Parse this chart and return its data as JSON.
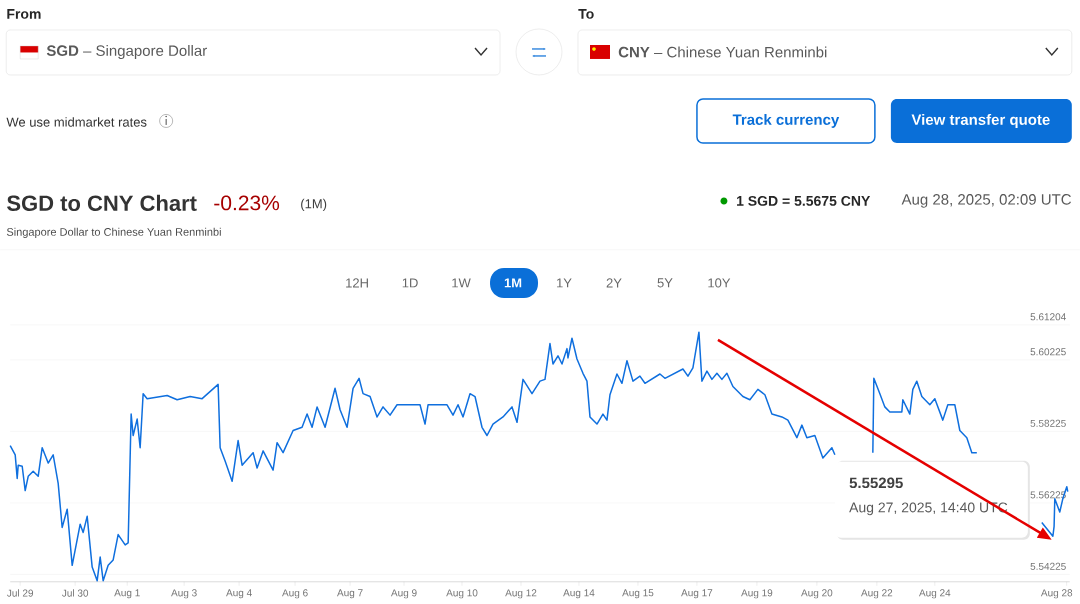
{
  "chart_data": {
    "type": "line",
    "title": "SGD to CNY Chart",
    "subtitle": "Singapore Dollar to Chinese Yuan Renminbi",
    "color": "#0f6fde",
    "grid": "y",
    "annotations": [
      "From",
      "To",
      "**SGD** – Singapore Dollar",
      "**CNY** – Chinese Yuan Renminbi",
      "We use midmarket rates",
      "Track currency",
      "View transfer quote",
      "-0.23%",
      "(1M)",
      "1 SGD = 5.5675 CNY",
      "Aug 28, 2025, 02:09 UTC",
      "12H",
      "1D",
      "1W",
      "1M",
      "1Y",
      "2Y",
      "5Y",
      "10Y",
      "5.55295",
      "Aug 27, 2025, 14:40 UTC"
    ],
    "x": [
      "2025-07-29T02:09",
      "2025-07-29T05:33",
      "2025-07-29T06:54",
      "2025-07-29T07:35",
      "2025-07-29T10:18",
      "2025-07-29T12:20",
      "2025-07-29T14:23",
      "2025-07-29T17:46",
      "2025-07-29T21:10",
      "2025-07-29T23:53",
      "2025-07-30T03:58",
      "2025-07-30T07:21",
      "2025-07-30T10:45",
      "2025-07-30T13:28",
      "2025-07-30T16:52",
      "2025-07-30T20:16",
      "2025-07-31T01:42",
      "2025-07-31T03:44",
      "2025-07-31T06:27",
      "2025-07-31T09:51",
      "2025-07-31T13:15",
      "2025-07-31T15:17",
      "2025-07-31T17:19",
      "2025-07-31T20:43",
      "2025-08-01T00:07",
      "2025-08-01T03:30",
      "2025-08-01T08:16",
      "2025-08-01T10:18",
      "2025-08-01T12:20",
      "2025-08-01T13:42",
      "2025-08-01T16:25",
      "2025-08-01T18:27",
      "2025-08-01T20:29",
      "2025-08-01T23:12",
      "2025-08-02T12:47",
      "2025-08-02T19:35",
      "2025-08-03T04:25",
      "2025-08-03T12:34",
      "2025-08-03T18:00",
      "2025-08-03T23:26",
      "2025-08-04T00:48",
      "2025-08-04T04:11",
      "2025-08-04T08:57",
      "2025-08-04T13:01",
      "2025-08-04T15:44",
      "2025-08-04T23:12",
      "2025-08-05T01:55",
      "2025-08-05T06:00",
      "2025-08-05T12:47",
      "2025-08-05T15:30",
      "2025-08-05T19:35",
      "2025-08-06T02:23",
      "2025-08-06T08:29",
      "2025-08-06T11:53",
      "2025-08-06T15:17",
      "2025-08-06T18:41",
      "2025-08-07T00:07",
      "2025-08-07T06:54",
      "2025-08-07T10:18",
      "2025-08-07T15:03",
      "2025-08-07T19:08",
      "2025-08-07T23:12",
      "2025-08-08T01:55",
      "2025-08-08T06:41",
      "2025-08-08T11:26",
      "2025-08-08T15:30",
      "2025-08-08T20:16",
      "2025-08-09T01:01",
      "2025-08-09T16:38",
      "2025-08-09T20:02",
      "2025-08-09T22:05",
      "2025-08-10T10:59",
      "2025-08-10T15:03",
      "2025-08-10T18:27",
      "2025-08-10T21:51",
      "2025-08-11T02:36",
      "2025-08-11T06:00",
      "2025-08-11T10:45",
      "2025-08-11T14:09",
      "2025-08-11T18:13",
      "2025-08-12T01:01",
      "2025-08-12T07:08",
      "2025-08-12T10:32",
      "2025-08-12T14:36",
      "2025-08-12T20:43",
      "2025-08-13T02:09",
      "2025-08-13T05:33",
      "2025-08-13T08:56",
      "2025-08-13T10:59",
      "2025-08-13T14:23",
      "2025-08-13T17:06",
      "2025-08-13T20:29",
      "2025-08-13T21:10",
      "2025-08-13T23:53",
      "2025-08-14T03:17",
      "2025-08-14T07:21",
      "2025-08-14T10:04",
      "2025-08-14T12:07",
      "2025-08-14T16:52",
      "2025-08-14T20:56",
      "2025-08-14T23:40",
      "2025-08-15T01:42",
      "2025-08-15T06:27",
      "2025-08-15T09:51",
      "2025-08-15T13:15",
      "2025-08-15T17:19",
      "2025-08-15T22:04",
      "2025-08-16T01:28",
      "2025-08-16T11:40",
      "2025-08-16T15:03",
      "2025-08-17T03:17",
      "2025-08-17T06:41",
      "2025-08-17T10:04",
      "2025-08-17T14:09",
      "2025-08-17T16:11",
      "2025-08-17T19:35",
      "2025-08-17T22:59",
      "2025-08-18T02:23",
      "2025-08-18T05:46",
      "2025-08-18T09:10",
      "2025-08-18T13:15",
      "2025-08-18T20:02",
      "2025-08-19T00:47",
      "2025-08-19T06:13",
      "2025-08-19T10:59",
      "2025-08-19T15:44",
      "2025-08-19T22:32",
      "2025-08-20T02:36",
      "2025-08-20T08:43",
      "2025-08-20T12:07",
      "2025-08-20T15:30",
      "2025-08-20T20:56",
      "2025-08-21T02:23",
      "2025-08-21T08:29",
      "2025-08-21T10:32",
      "2025-08-22T00:07",
      "2025-08-22T12:20",
      "2025-08-22T13:01",
      "2025-08-22T17:06",
      "2025-08-22T20:29",
      "2025-08-22T23:53",
      "2025-08-23T08:02",
      "2025-08-23T08:43",
      "2025-08-23T13:28",
      "2025-08-23T15:30",
      "2025-08-23T18:13",
      "2025-08-23T21:37",
      "2025-08-24T03:03",
      "2025-08-24T06:27",
      "2025-08-24T11:53",
      "2025-08-24T15:17",
      "2025-08-24T20:02",
      "2025-08-24T23:26",
      "2025-08-25T04:11",
      "2025-08-25T07:35",
      "2025-08-25T10:59",
      "2025-08-26T09:24",
      "2025-08-27T07:08",
      "2025-08-27T14:40",
      "2025-08-27T15:30",
      "2025-08-27T15:58",
      "2025-08-27T19:21",
      "2025-08-27T21:24",
      "2025-08-28T00:07",
      "2025-08-28T00:47"
    ],
    "values": [
      5.5783,
      5.5757,
      5.5691,
      5.5728,
      5.5725,
      5.5657,
      5.5697,
      5.5711,
      5.5697,
      5.5777,
      5.5734,
      5.5757,
      5.5677,
      5.5554,
      5.5605,
      5.5448,
      5.5563,
      5.554,
      5.5585,
      5.5443,
      5.5405,
      5.5471,
      5.5405,
      5.5448,
      5.5463,
      5.5534,
      5.5505,
      5.5511,
      5.5871,
      5.5811,
      5.5857,
      5.5777,
      5.5928,
      5.5914,
      5.5923,
      5.5911,
      5.592,
      5.5914,
      5.5934,
      5.5954,
      5.5777,
      5.574,
      5.5683,
      5.5797,
      5.5728,
      5.5763,
      5.572,
      5.5768,
      5.5714,
      5.5791,
      5.5763,
      5.5825,
      5.5834,
      5.5871,
      5.5834,
      5.5891,
      5.5834,
      5.5943,
      5.5883,
      5.5834,
      5.5943,
      5.5971,
      5.5928,
      5.592,
      5.5863,
      5.5891,
      5.5868,
      5.5897,
      5.5897,
      5.5843,
      5.5897,
      5.5897,
      5.5868,
      5.5897,
      5.5863,
      5.5928,
      5.592,
      5.5834,
      5.5811,
      5.5843,
      5.5863,
      5.5891,
      5.5848,
      5.5968,
      5.5928,
      5.5963,
      5.5968,
      5.6068,
      5.6011,
      5.6034,
      5.6011,
      5.6054,
      5.6028,
      5.6083,
      5.6025,
      5.5985,
      5.5963,
      5.5863,
      5.5843,
      5.5871,
      5.5854,
      5.5925,
      5.5983,
      5.5957,
      5.602,
      5.5963,
      5.5977,
      5.5957,
      5.5983,
      5.5971,
      5.5997,
      5.5977,
      5.6,
      5.61,
      5.5963,
      5.5991,
      5.5968,
      5.5985,
      5.5968,
      5.5985,
      5.5948,
      5.592,
      5.5911,
      5.594,
      5.5925,
      5.5871,
      5.5863,
      5.5854,
      5.5805,
      5.584,
      5.5805,
      5.5811,
      5.5748,
      5.5777,
      5.5757,
      null,
      5.5763,
      5.5971,
      5.5928,
      5.5891,
      5.5877,
      5.5877,
      5.5911,
      5.5871,
      5.594,
      5.5963,
      5.592,
      5.5897,
      5.5914,
      5.5854,
      5.5897,
      5.5897,
      5.5825,
      5.5805,
      5.5763,
      5.5763,
      null,
      5.5568,
      5.55295,
      5.5557,
      5.5634,
      5.5597,
      5.5634,
      5.5668,
      5.5654
    ],
    "xlim": [
      "2025-07-29T02:09",
      "2025-08-28T02:09"
    ],
    "ylim": [
      5.5402,
      5.61204
    ],
    "xticks": [
      {
        "value": "2025-07-29T08:56",
        "label": "Jul 29"
      },
      {
        "value": "2025-07-30T22:18",
        "label": "Jul 30"
      },
      {
        "value": "2025-08-01T09:40",
        "label": "Aug 1"
      },
      {
        "value": "2025-08-03T00:20",
        "label": "Aug 3"
      },
      {
        "value": "2025-08-04T13:42",
        "label": "Aug 4"
      },
      {
        "value": "2025-08-06T03:44",
        "label": "Aug 6"
      },
      {
        "value": "2025-08-07T17:06",
        "label": "Aug 7"
      },
      {
        "value": "2025-08-09T05:46",
        "label": "Aug 9"
      },
      {
        "value": "2025-08-10T21:10",
        "label": "Aug 10"
      },
      {
        "value": "2025-08-12T13:15",
        "label": "Aug 12"
      },
      {
        "value": "2025-08-14T04:38",
        "label": "Aug 14"
      },
      {
        "value": "2025-08-15T20:43",
        "label": "Aug 15"
      },
      {
        "value": "2025-08-17T12:47",
        "label": "Aug 17"
      },
      {
        "value": "2025-08-19T05:33",
        "label": "Aug 19"
      },
      {
        "value": "2025-08-20T22:18",
        "label": "Aug 20"
      },
      {
        "value": "2025-08-22T15:03",
        "label": "Aug 22"
      },
      {
        "value": "2025-08-24T06:27",
        "label": "Aug 24"
      },
      {
        "value": "2025-08-28T00:00",
        "label": "Aug 28"
      }
    ],
    "yticks": [
      5.54225,
      5.56225,
      5.58225,
      5.60225,
      5.61204
    ]
  }
}
